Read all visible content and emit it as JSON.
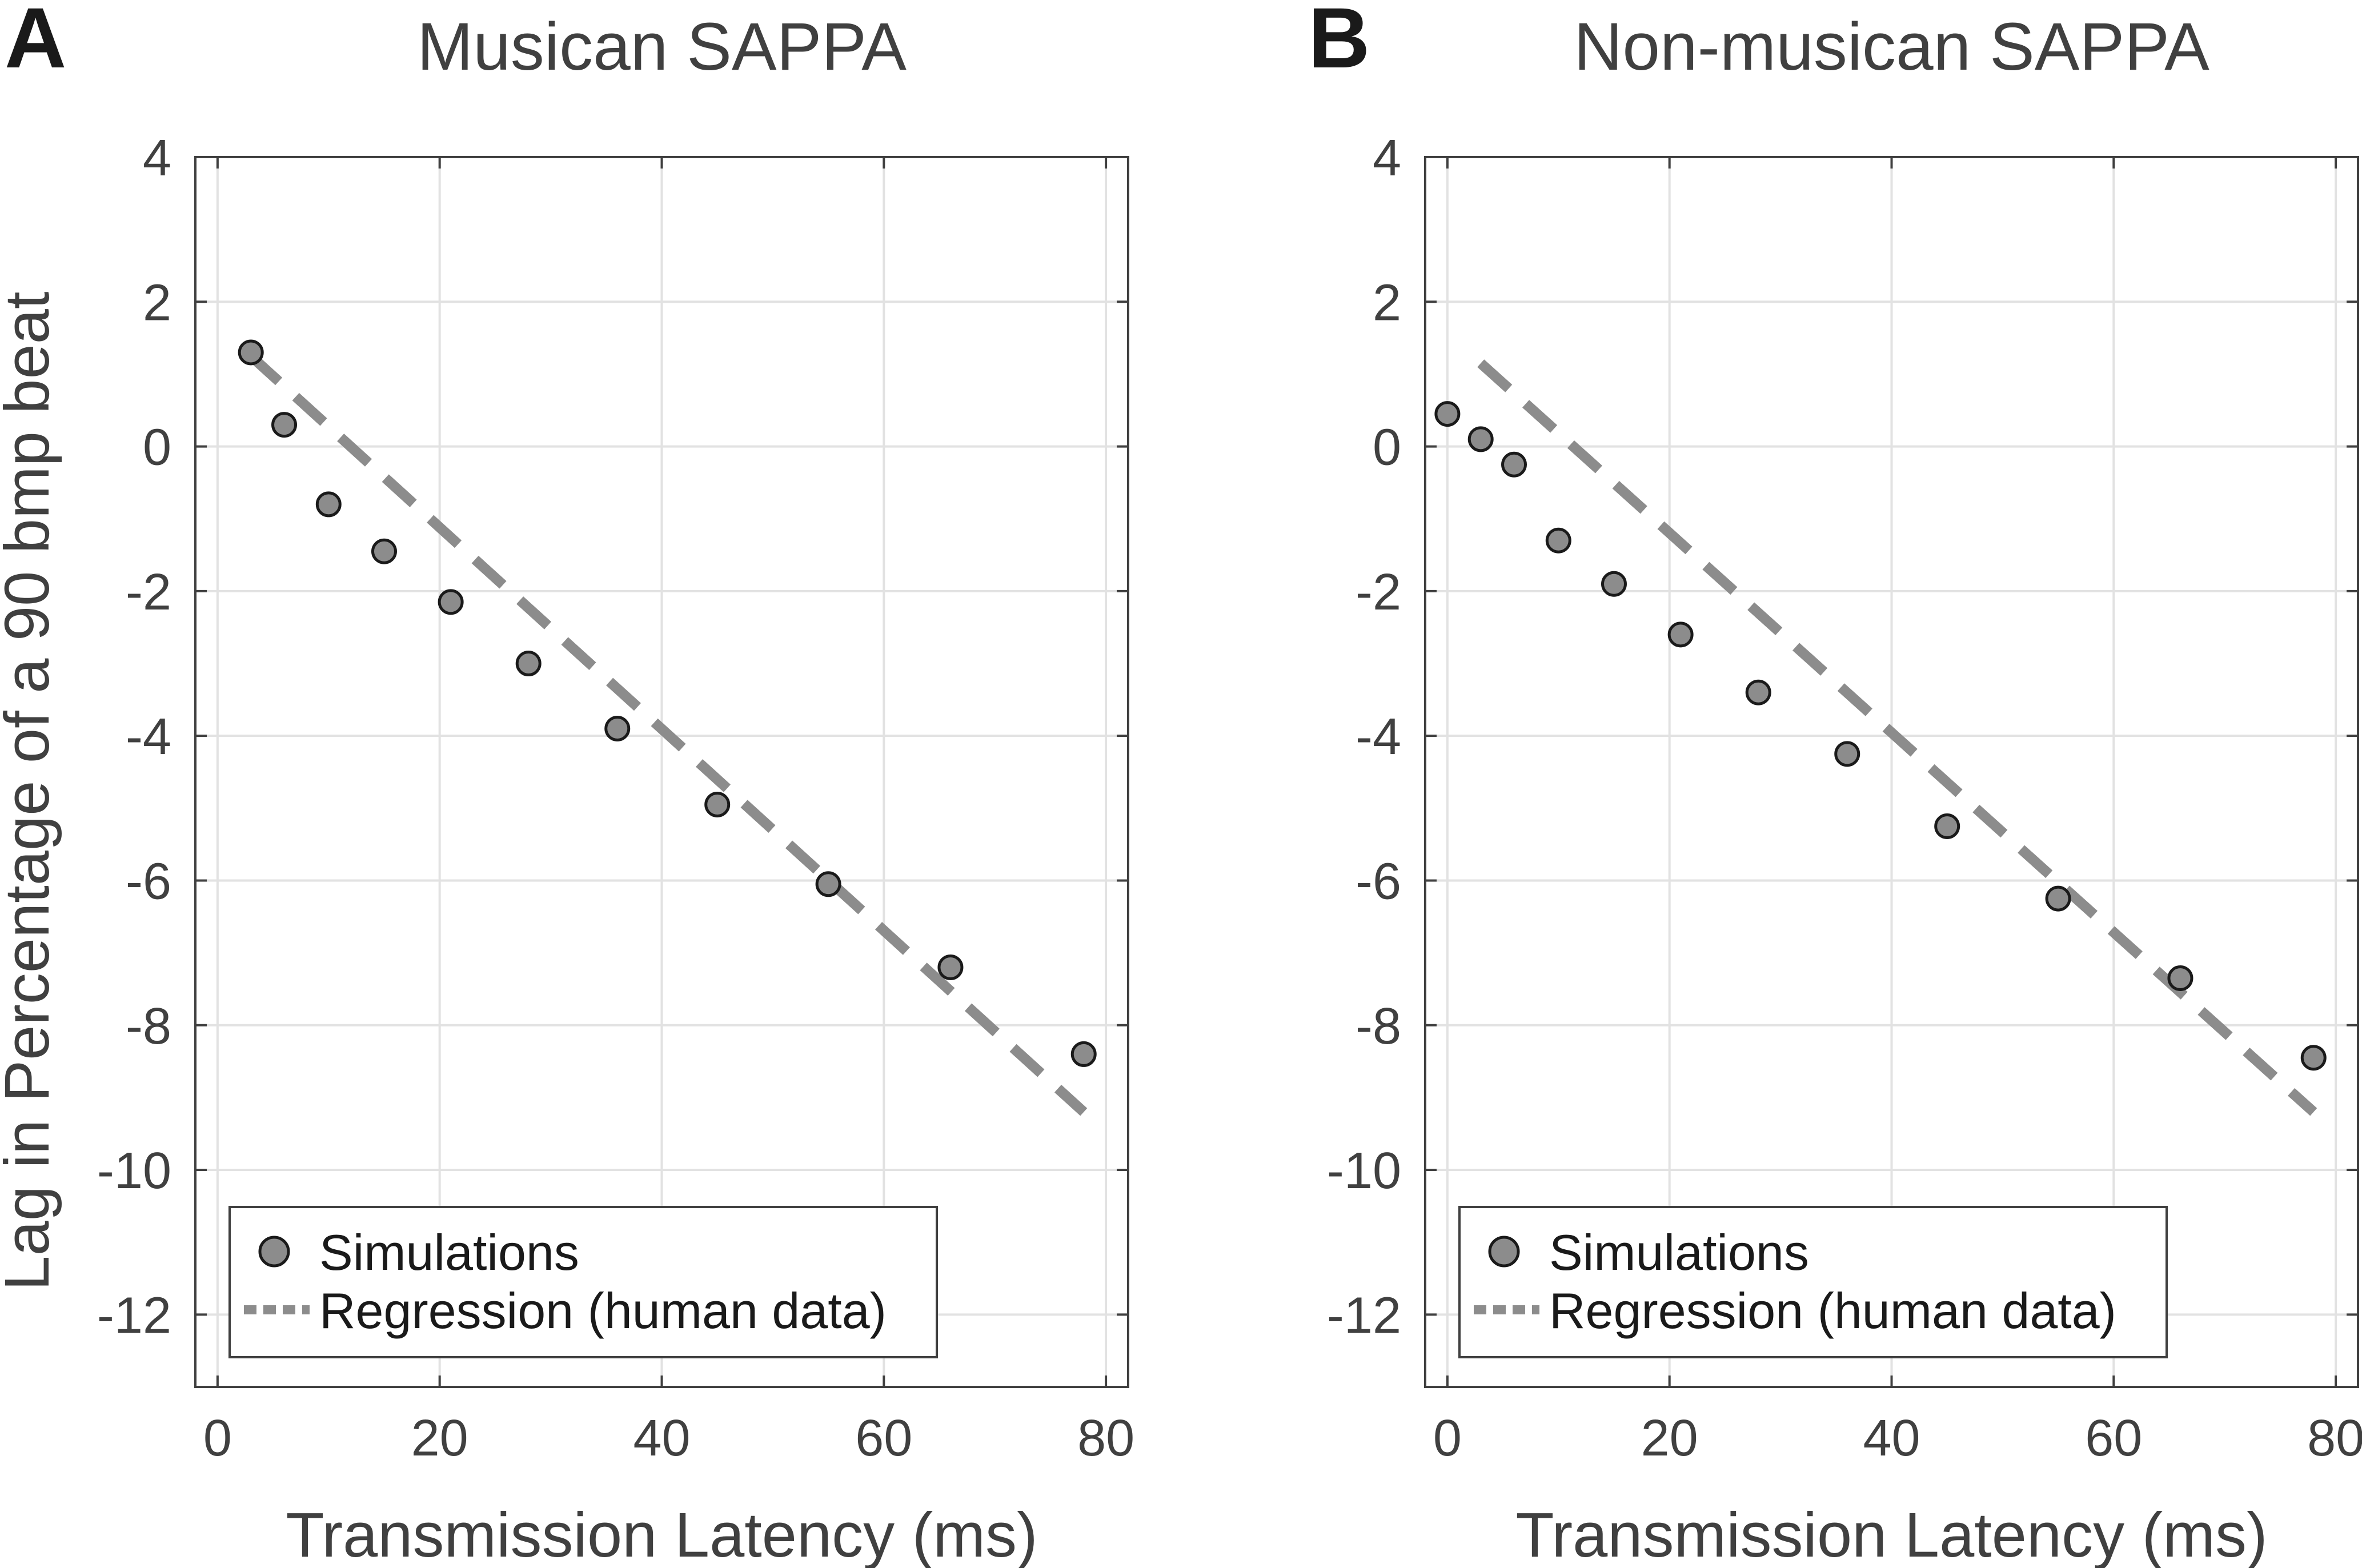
{
  "figure": {
    "ylabel": "Lag in Percentage of a 90 bmp beat",
    "colors": {
      "marker_fill": "#8c8c8c",
      "marker_edge": "#1a1a1a",
      "regression": "#8c8c8c",
      "grid": "#e2e2e2",
      "axis": "#404040"
    }
  },
  "chart_data": [
    {
      "type": "scatter",
      "panel_letter": "A",
      "title": "Musican SAPPA",
      "xlabel": "Transmission Latency (ms)",
      "ylabel": "Lag in Percentage of a 90 bmp beat",
      "xlim": [
        -2,
        82
      ],
      "ylim": [
        -13,
        4
      ],
      "xticks": [
        0,
        20,
        40,
        60,
        80
      ],
      "yticks": [
        4,
        2,
        0,
        -2,
        -4,
        -6,
        -8,
        -10,
        -12
      ],
      "grid": true,
      "legend": {
        "position": "bottom-left",
        "entries": [
          "Simulations",
          "Regression (human data)"
        ]
      },
      "series": [
        {
          "name": "Simulations",
          "kind": "points",
          "x": [
            3,
            6,
            10,
            15,
            21,
            28,
            36,
            45,
            55,
            66,
            78
          ],
          "y": [
            1.3,
            0.3,
            -0.8,
            -1.45,
            -2.15,
            -3.0,
            -3.9,
            -4.95,
            -6.05,
            -7.2,
            -8.4
          ]
        },
        {
          "name": "Regression (human data)",
          "kind": "dashed-line",
          "x": [
            3,
            78
          ],
          "y": [
            1.25,
            -9.2
          ]
        }
      ]
    },
    {
      "type": "scatter",
      "panel_letter": "B",
      "title": "Non-musican SAPPA",
      "xlabel": "Transmission Latency (ms)",
      "xlim": [
        -2,
        82
      ],
      "ylim": [
        -13,
        4
      ],
      "xticks": [
        0,
        20,
        40,
        60,
        80
      ],
      "yticks": [
        4,
        2,
        0,
        -2,
        -4,
        -6,
        -8,
        -10,
        -12
      ],
      "grid": true,
      "legend": {
        "position": "bottom-left",
        "entries": [
          "Simulations",
          "Regression (human data)"
        ]
      },
      "series": [
        {
          "name": "Simulations",
          "kind": "points",
          "x": [
            0,
            3,
            6,
            10,
            15,
            21,
            28,
            36,
            45,
            55,
            66,
            78
          ],
          "y": [
            0.45,
            0.1,
            -0.25,
            -1.3,
            -1.9,
            -2.6,
            -3.4,
            -4.25,
            -5.25,
            -6.25,
            -7.35,
            -8.45
          ]
        },
        {
          "name": "Regression (human data)",
          "kind": "dashed-line",
          "x": [
            3,
            78
          ],
          "y": [
            1.15,
            -9.2
          ]
        }
      ]
    }
  ]
}
